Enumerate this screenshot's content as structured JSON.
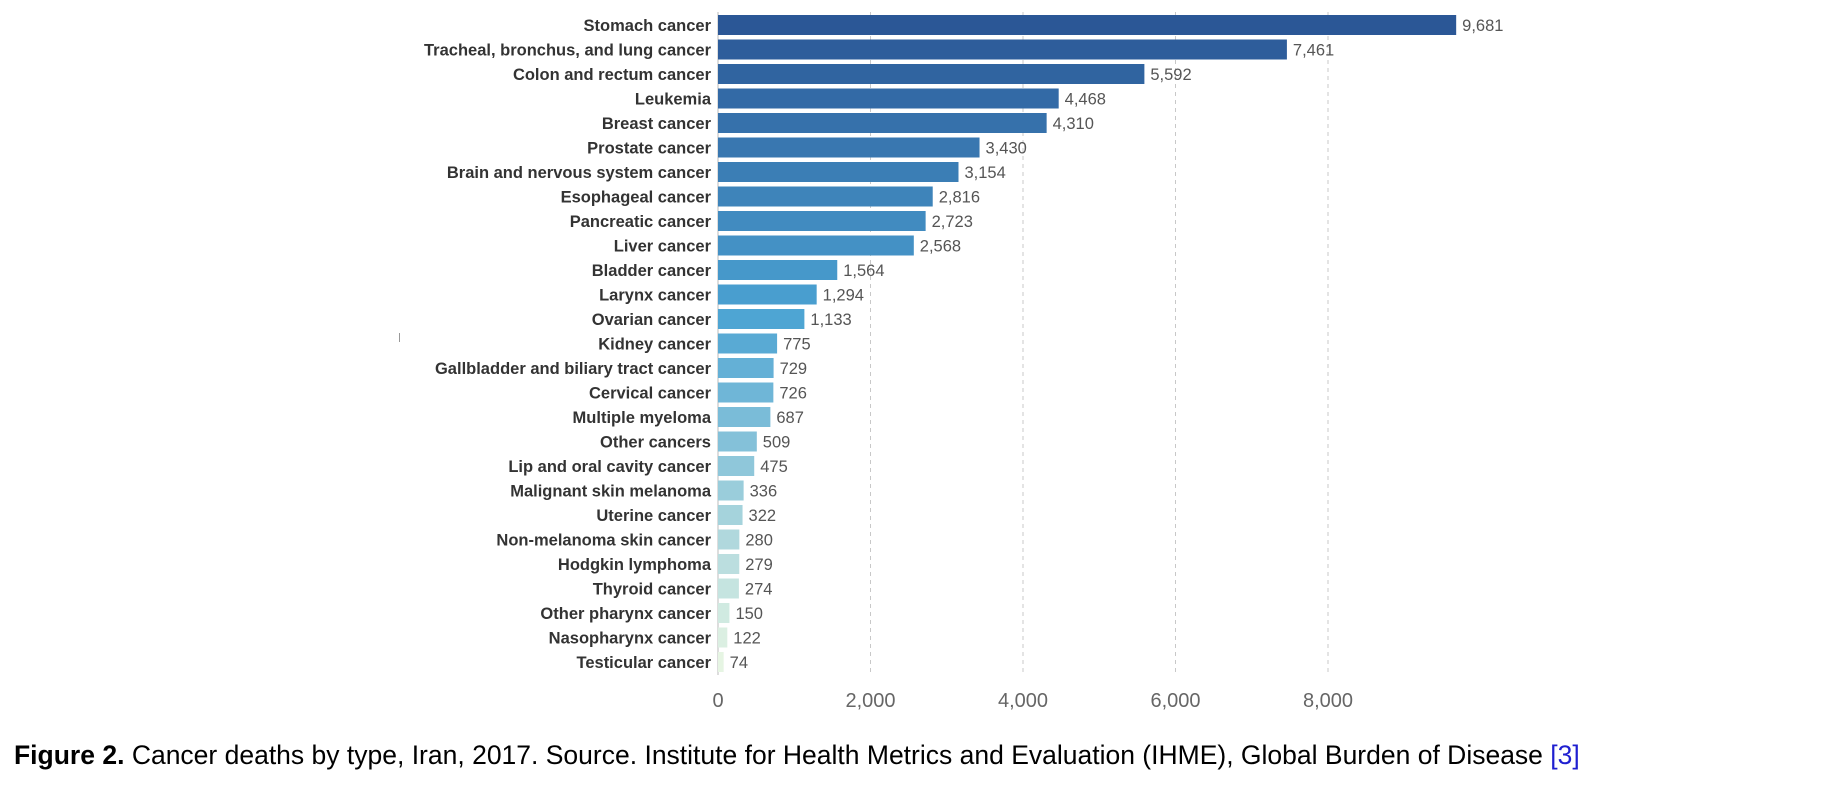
{
  "chart_data": {
    "type": "bar",
    "orientation": "horizontal",
    "categories": [
      "Stomach cancer",
      "Tracheal, bronchus, and lung cancer",
      "Colon and rectum cancer",
      "Leukemia",
      "Breast cancer",
      "Prostate cancer",
      "Brain and nervous system cancer",
      "Esophageal cancer",
      "Pancreatic cancer",
      "Liver cancer",
      "Bladder cancer",
      "Larynx cancer",
      "Ovarian cancer",
      "Kidney cancer",
      "Gallbladder and biliary tract cancer",
      "Cervical cancer",
      "Multiple myeloma",
      "Other cancers",
      "Lip and oral cavity cancer",
      "Malignant skin melanoma",
      "Uterine cancer",
      "Non-melanoma skin cancer",
      "Hodgkin lymphoma",
      "Thyroid cancer",
      "Other pharynx cancer",
      "Nasopharynx cancer",
      "Testicular cancer"
    ],
    "values": [
      9681,
      7461,
      5592,
      4468,
      4310,
      3430,
      3154,
      2816,
      2723,
      2568,
      1564,
      1294,
      1133,
      775,
      729,
      726,
      687,
      509,
      475,
      336,
      322,
      280,
      279,
      274,
      150,
      122,
      74
    ],
    "value_labels": [
      "9,681",
      "7,461",
      "5,592",
      "4,468",
      "4,310",
      "3,430",
      "3,154",
      "2,816",
      "2,723",
      "2,568",
      "1,564",
      "1,294",
      "1,133",
      "775",
      "729",
      "726",
      "687",
      "509",
      "475",
      "336",
      "322",
      "280",
      "279",
      "274",
      "150",
      "122",
      "74"
    ],
    "x_ticks": [
      0,
      2000,
      4000,
      6000,
      8000
    ],
    "x_tick_labels": [
      "0",
      "2,000",
      "4,000",
      "6,000",
      "8,000"
    ],
    "xlim": [
      0,
      10000
    ],
    "grid": true,
    "grid_axis": "x",
    "color_scale": {
      "high": "#2b5796",
      "mid": "#4ba3d3",
      "low": "#e6f5e3"
    },
    "title": "",
    "xlabel": "",
    "ylabel": ""
  },
  "caption": {
    "label": "Figure 2.",
    "text": " Cancer deaths by type, Iran, 2017. Source. Institute for Health Metrics and Evaluation (IHME), Global Burden of Disease ",
    "reference": "[3]"
  }
}
